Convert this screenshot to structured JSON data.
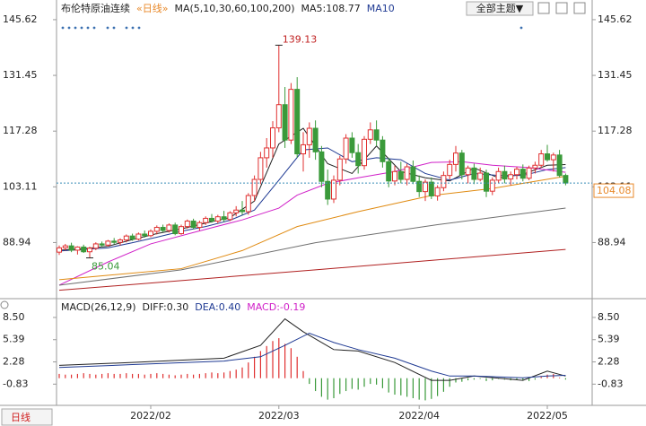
{
  "chart_data": [
    {
      "type": "candlestick",
      "title": "布伦特原油连续",
      "subtitle": "«日线»",
      "legend": [
        "MA(5,10,30,60,100,200)",
        "MA5:108.77",
        "MA10"
      ],
      "legend_colors": [
        "#222222",
        "#222222",
        "#1f3a93"
      ],
      "toolbar": "全部主题▼",
      "up_color": "#e03030",
      "down_color": "#3a9a3a",
      "ylim": [
        76.5,
        147.2
      ],
      "yticks": [
        145.62,
        131.45,
        117.28,
        103.11,
        88.94
      ],
      "grid": false,
      "last_color": "#e8892a",
      "categories": [
        null,
        null,
        null,
        null,
        null,
        null,
        null,
        null,
        null,
        null,
        null,
        null,
        null,
        null,
        null,
        "2022/02",
        null,
        null,
        null,
        null,
        null,
        null,
        null,
        null,
        null,
        null,
        null,
        null,
        null,
        null,
        null,
        null,
        null,
        null,
        null,
        null,
        "2022/03",
        null,
        null,
        null,
        null,
        null,
        null,
        null,
        null,
        null,
        null,
        null,
        null,
        null,
        null,
        null,
        null,
        null,
        null,
        null,
        null,
        null,
        null,
        "2022/04",
        null,
        null,
        null,
        null,
        null,
        null,
        null,
        null,
        null,
        null,
        null,
        null,
        null,
        null,
        null,
        null,
        null,
        null,
        null,
        null,
        "2022/05",
        null,
        null,
        null
      ],
      "ohlc": [
        [
          86.5,
          88.2,
          85.8,
          87.6
        ],
        [
          87.6,
          88.6,
          86.9,
          88.1
        ],
        [
          88.1,
          88.9,
          86.5,
          87.0
        ],
        [
          87.0,
          88.0,
          85.9,
          87.8
        ],
        [
          87.8,
          88.4,
          86.3,
          86.6
        ],
        [
          86.6,
          87.9,
          85.04,
          87.5
        ],
        [
          87.5,
          89.0,
          87.0,
          88.6
        ],
        [
          88.6,
          89.2,
          87.8,
          88.3
        ],
        [
          88.3,
          89.6,
          87.9,
          89.3
        ],
        [
          89.3,
          90.1,
          88.5,
          89.0
        ],
        [
          89.0,
          90.0,
          88.2,
          89.6
        ],
        [
          89.6,
          91.0,
          89.0,
          90.6
        ],
        [
          90.6,
          91.2,
          89.4,
          89.8
        ],
        [
          89.8,
          91.5,
          89.5,
          91.1
        ],
        [
          91.1,
          92.0,
          90.2,
          90.7
        ],
        [
          90.7,
          92.3,
          90.3,
          91.8
        ],
        [
          91.8,
          93.3,
          91.0,
          92.8
        ],
        [
          92.8,
          93.5,
          91.6,
          92.0
        ],
        [
          92.0,
          93.8,
          91.5,
          93.4
        ],
        [
          93.4,
          94.0,
          90.8,
          91.2
        ],
        [
          91.2,
          93.5,
          90.9,
          93.0
        ],
        [
          93.0,
          94.8,
          92.5,
          94.4
        ],
        [
          94.4,
          95.0,
          92.3,
          92.8
        ],
        [
          92.8,
          94.5,
          92.0,
          94.0
        ],
        [
          94.0,
          95.6,
          93.4,
          95.1
        ],
        [
          95.1,
          96.2,
          94.0,
          94.4
        ],
        [
          94.4,
          96.0,
          93.8,
          95.5
        ],
        [
          95.5,
          97.0,
          94.2,
          94.8
        ],
        [
          94.8,
          96.9,
          94.4,
          96.5
        ],
        [
          96.5,
          98.2,
          95.6,
          97.2
        ],
        [
          97.2,
          99.5,
          96.0,
          96.8
        ],
        [
          96.8,
          101.5,
          96.0,
          100.9
        ],
        [
          100.9,
          106.0,
          99.5,
          105.0
        ],
        [
          105.0,
          112.0,
          103.8,
          110.5
        ],
        [
          110.5,
          115.5,
          108.0,
          113.0
        ],
        [
          113.0,
          119.8,
          110.5,
          118.1
        ],
        [
          118.1,
          139.13,
          117.0,
          124.0
        ],
        [
          124.0,
          128.5,
          113.0,
          115.0
        ],
        [
          115.0,
          129.5,
          114.0,
          127.9
        ],
        [
          127.9,
          131.0,
          110.5,
          111.5
        ],
        [
          111.5,
          117.0,
          107.0,
          113.8
        ],
        [
          113.8,
          119.5,
          110.5,
          118.0
        ],
        [
          118.0,
          120.0,
          110.0,
          112.0
        ],
        [
          112.0,
          113.5,
          103.0,
          104.5
        ],
        [
          104.5,
          107.5,
          98.5,
          100.0
        ],
        [
          100.0,
          106.0,
          99.0,
          104.8
        ],
        [
          104.8,
          111.0,
          103.5,
          110.2
        ],
        [
          110.2,
          116.5,
          109.0,
          115.5
        ],
        [
          115.5,
          117.0,
          110.5,
          111.8
        ],
        [
          111.8,
          114.0,
          106.5,
          108.5
        ],
        [
          108.5,
          116.0,
          107.5,
          115.2
        ],
        [
          115.2,
          119.5,
          114.0,
          117.6
        ],
        [
          117.6,
          120.0,
          113.5,
          115.0
        ],
        [
          115.0,
          116.0,
          108.0,
          109.5
        ],
        [
          109.5,
          110.5,
          103.0,
          104.6
        ],
        [
          104.6,
          108.5,
          103.5,
          107.0
        ],
        [
          107.0,
          109.5,
          104.0,
          105.0
        ],
        [
          105.0,
          109.0,
          103.5,
          108.2
        ],
        [
          108.2,
          109.8,
          103.8,
          104.5
        ],
        [
          104.5,
          106.0,
          100.5,
          101.9
        ],
        [
          101.9,
          105.0,
          99.5,
          104.3
        ],
        [
          104.3,
          105.5,
          100.0,
          100.8
        ],
        [
          100.8,
          103.5,
          99.6,
          102.9
        ],
        [
          102.9,
          107.0,
          102.0,
          106.0
        ],
        [
          106.0,
          110.0,
          105.0,
          108.8
        ],
        [
          108.8,
          113.5,
          107.0,
          111.7
        ],
        [
          111.7,
          112.5,
          105.0,
          106.2
        ],
        [
          106.2,
          108.5,
          104.0,
          107.9
        ],
        [
          107.9,
          109.0,
          103.8,
          105.0
        ],
        [
          105.0,
          108.0,
          104.5,
          106.6
        ],
        [
          106.6,
          107.5,
          100.5,
          102.0
        ],
        [
          102.0,
          105.5,
          101.0,
          104.8
        ],
        [
          104.8,
          108.0,
          104.0,
          107.0
        ],
        [
          107.0,
          108.5,
          104.0,
          105.1
        ],
        [
          105.1,
          107.0,
          103.5,
          106.2
        ],
        [
          106.2,
          108.2,
          105.0,
          107.6
        ],
        [
          107.6,
          108.8,
          104.5,
          105.3
        ],
        [
          105.3,
          108.5,
          104.8,
          107.9
        ],
        [
          107.9,
          109.5,
          106.5,
          108.6
        ],
        [
          108.6,
          112.5,
          108.0,
          111.5
        ],
        [
          111.5,
          113.8,
          109.5,
          110.0
        ],
        [
          110.0,
          111.8,
          107.0,
          111.2
        ],
        [
          111.2,
          112.5,
          105.5,
          106.0
        ],
        [
          106.0,
          106.5,
          103.5,
          104.08
        ]
      ],
      "series": [
        {
          "color": "#222222",
          "x": [
            0,
            4,
            8,
            12,
            16,
            20,
            24,
            28,
            32,
            36,
            40,
            44,
            48,
            52,
            56,
            60,
            64,
            68,
            72,
            76,
            80,
            83
          ],
          "values": [
            87.0,
            87.4,
            88.0,
            89.7,
            91.2,
            92.4,
            93.9,
            95.3,
            99.5,
            114.0,
            118.0,
            109.0,
            106.5,
            113.5,
            107.0,
            105.4,
            104.6,
            107.9,
            105.4,
            106.3,
            108.6,
            108.77
          ]
        },
        {
          "color": "#1f3a93",
          "x": [
            0,
            4,
            8,
            12,
            16,
            20,
            24,
            28,
            32,
            36,
            40,
            44,
            48,
            52,
            56,
            60,
            64,
            68,
            72,
            76,
            80,
            83
          ],
          "values": [
            86.8,
            87.2,
            87.6,
            88.9,
            90.3,
            91.8,
            93.0,
            94.6,
            97.2,
            104.8,
            112.5,
            113.0,
            109.5,
            110.5,
            110.0,
            106.5,
            104.8,
            106.5,
            106.0,
            106.0,
            107.5,
            108.0
          ]
        },
        {
          "color": "#d020c8",
          "x": [
            0,
            8,
            15,
            22,
            30,
            36,
            39,
            44,
            49,
            55,
            61,
            66,
            71,
            77,
            83
          ],
          "values": [
            78.1,
            84.0,
            88.6,
            91.5,
            94.7,
            97.7,
            101.0,
            104.0,
            105.4,
            107.0,
            109.3,
            109.5,
            108.6,
            108.0,
            106.8
          ]
        },
        {
          "color": "#e08a10",
          "x": [
            0,
            20,
            30,
            39,
            49,
            61,
            71,
            83
          ],
          "values": [
            79.5,
            82.3,
            86.9,
            93.0,
            96.8,
            100.9,
            102.7,
            105.8
          ]
        },
        {
          "color": "#707070",
          "x": [
            0,
            20,
            42,
            62,
            83
          ],
          "values": [
            78.1,
            82.0,
            88.9,
            93.5,
            97.7
          ]
        },
        {
          "color": "#b02020",
          "x": [
            0,
            42,
            83
          ],
          "values": [
            76.8,
            82.0,
            87.2
          ]
        }
      ]
    },
    {
      "type": "macd",
      "legend": [
        "MACD(26,12,9)",
        "DIFF:0.30",
        "DEA:0.40",
        "MACD:-0.19"
      ],
      "legend_colors": [
        "#222222",
        "#222222",
        "#1f3a93",
        "#d020c8"
      ],
      "ylim": [
        -3.3,
        10
      ],
      "yticks": [
        {
          "value": 8.5,
          "label": "8.50"
        },
        5.39,
        2.28,
        -0.83
      ],
      "up_color": "#e03030",
      "down_color": "#3a9a3a",
      "hist": [
        0.6,
        0.5,
        0.5,
        0.6,
        0.7,
        0.6,
        0.5,
        0.6,
        0.7,
        0.6,
        0.6,
        0.7,
        0.6,
        0.6,
        0.5,
        0.6,
        0.7,
        0.6,
        0.5,
        0.4,
        0.5,
        0.6,
        0.5,
        0.6,
        0.7,
        0.8,
        0.7,
        0.8,
        1.0,
        1.2,
        1.5,
        2.2,
        3.0,
        3.8,
        4.5,
        5.2,
        5.6,
        4.8,
        4.2,
        3.0,
        1.0,
        -0.8,
        -1.8,
        -2.6,
        -3.0,
        -2.8,
        -2.2,
        -1.8,
        -1.5,
        -1.6,
        -1.2,
        -0.8,
        -0.9,
        -1.4,
        -2.0,
        -2.3,
        -2.4,
        -2.6,
        -2.8,
        -3.0,
        -3.1,
        -2.9,
        -2.5,
        -1.9,
        -1.2,
        -0.6,
        -0.5,
        -0.3,
        -0.2,
        -0.1,
        -0.4,
        -0.3,
        -0.1,
        -0.2,
        -0.3,
        -0.2,
        -0.3,
        -0.4,
        -0.2,
        0.2,
        0.5,
        0.6,
        0.1,
        -0.19
      ],
      "series": [
        {
          "color": "#222222",
          "x": [
            0,
            12,
            27,
            33,
            37,
            40,
            45,
            49,
            55,
            61,
            64,
            68,
            76,
            80,
            83
          ],
          "values": [
            1.8,
            2.2,
            2.8,
            4.6,
            8.3,
            6.5,
            4.0,
            3.8,
            2.2,
            -0.3,
            -0.3,
            0.3,
            -0.3,
            1.0,
            0.3
          ]
        },
        {
          "color": "#1f3a93",
          "x": [
            0,
            12,
            27,
            33,
            37,
            41,
            45,
            49,
            55,
            61,
            64,
            68,
            76,
            80,
            83
          ],
          "values": [
            1.5,
            1.9,
            2.4,
            3.0,
            4.6,
            6.3,
            5.0,
            4.0,
            2.8,
            1.0,
            0.3,
            0.3,
            0.05,
            0.3,
            0.4
          ]
        }
      ],
      "tab": "日线"
    }
  ]
}
